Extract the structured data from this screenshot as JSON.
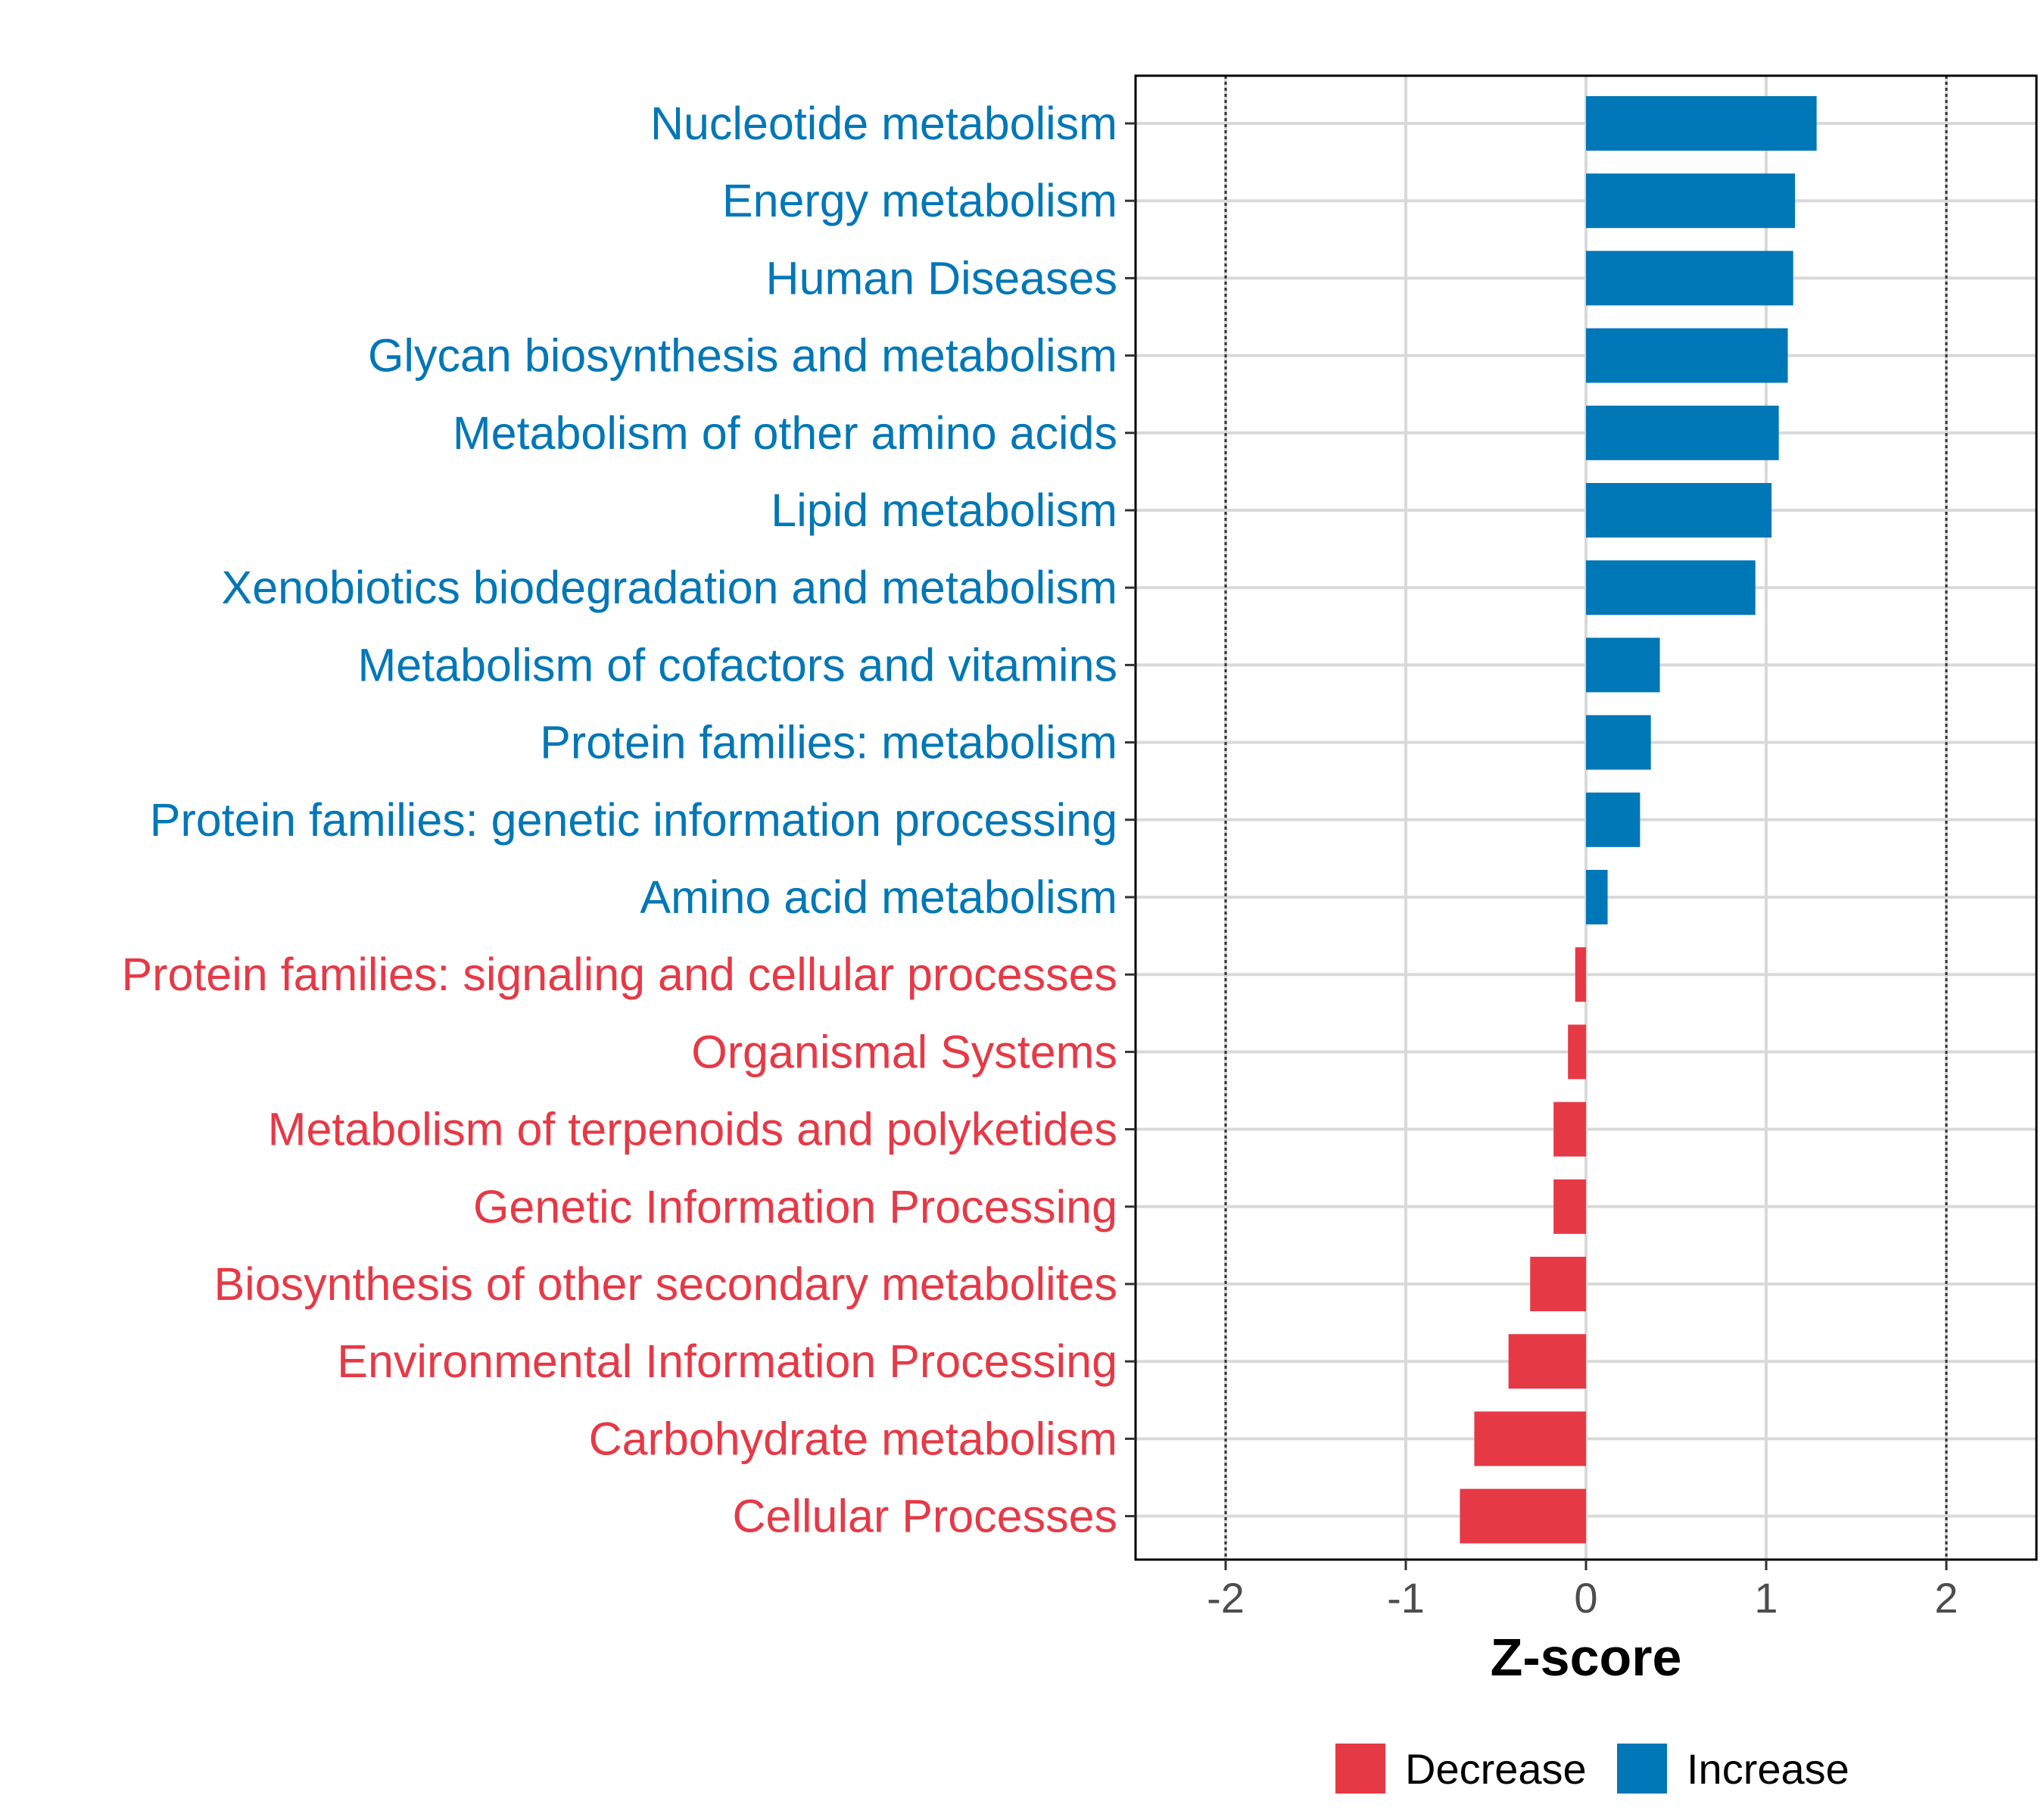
{
  "chart_data": {
    "type": "bar",
    "orientation": "horizontal",
    "title": "",
    "xlabel": "Z-score",
    "ylabel": "",
    "xlim": [
      -2.5,
      2.5
    ],
    "xticks": [
      -2,
      -1,
      0,
      1,
      2
    ],
    "xtick_labels": [
      "-2",
      "-1",
      "0",
      "1",
      "2"
    ],
    "reference_lines": [
      -2,
      2
    ],
    "grid": true,
    "categories": [
      "Nucleotide metabolism",
      "Energy metabolism",
      "Human Diseases",
      "Glycan biosynthesis and metabolism",
      "Metabolism of other amino acids",
      "Lipid metabolism",
      "Xenobiotics biodegradation and metabolism",
      "Metabolism of cofactors and vitamins",
      "Protein families: metabolism",
      "Protein families: genetic information processing",
      "Amino acid metabolism",
      "Protein families: signaling and cellular processes",
      "Organismal Systems",
      "Metabolism of terpenoids and polyketides",
      "Genetic Information Processing",
      "Biosynthesis of other secondary metabolites",
      "Environmental Information Processing",
      "Carbohydrate metabolism",
      "Cellular Processes"
    ],
    "values": [
      1.28,
      1.16,
      1.15,
      1.12,
      1.07,
      1.03,
      0.94,
      0.41,
      0.36,
      0.3,
      0.12,
      -0.06,
      -0.1,
      -0.18,
      -0.18,
      -0.31,
      -0.43,
      -0.62,
      -0.7
    ],
    "groups": [
      "Increase",
      "Increase",
      "Increase",
      "Increase",
      "Increase",
      "Increase",
      "Increase",
      "Increase",
      "Increase",
      "Increase",
      "Increase",
      "Decrease",
      "Decrease",
      "Decrease",
      "Decrease",
      "Decrease",
      "Decrease",
      "Decrease",
      "Decrease"
    ],
    "legend": {
      "placement": "bottom",
      "entries": [
        {
          "label": "Decrease",
          "color": "#e63946"
        },
        {
          "label": "Increase",
          "color": "#0077b6"
        }
      ]
    }
  }
}
